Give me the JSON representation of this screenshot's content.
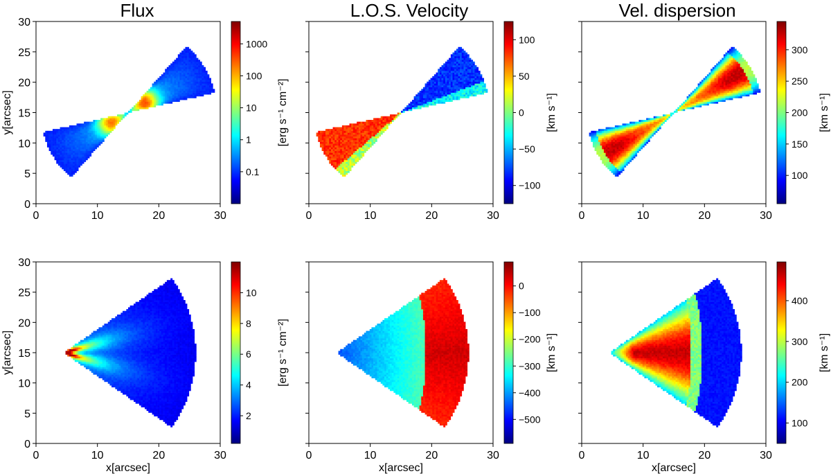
{
  "figure": {
    "column_titles": [
      "Flux",
      "L.O.S. Velocity",
      "Vel. dispersion"
    ]
  },
  "colormap": {
    "name": "jet",
    "stops": [
      "#00007f",
      "#0000ff",
      "#007fff",
      "#00ffff",
      "#7fff7f",
      "#ffff00",
      "#ff7f00",
      "#ff0000",
      "#7f0000"
    ]
  },
  "chart_data": [
    {
      "type": "heatmap",
      "row": 1,
      "col": 1,
      "title": "Flux",
      "xlim": [
        0,
        30
      ],
      "ylim": [
        0,
        30
      ],
      "xticks": [
        0,
        10,
        20,
        30
      ],
      "yticks": [
        0,
        5,
        10,
        15,
        20,
        25,
        30
      ],
      "xlabel": "",
      "ylabel": "y[arcsec]",
      "colorbar": {
        "label": "[erg s⁻¹ cm⁻²]",
        "scale": "log",
        "range": [
          0.01,
          5000
        ],
        "ticks": [
          0.1,
          1,
          10,
          100,
          1000
        ],
        "tick_labels": [
          "0.1",
          "1",
          "10",
          "100",
          "1000"
        ]
      },
      "description": "bicone"
    },
    {
      "type": "heatmap",
      "row": 1,
      "col": 2,
      "title": "L.O.S. Velocity",
      "xlim": [
        0,
        30
      ],
      "ylim": [
        0,
        30
      ],
      "xticks": [
        0,
        10,
        20,
        30
      ],
      "yticks": [],
      "xlabel": "",
      "ylabel": "",
      "colorbar": {
        "label": "[km s⁻¹]",
        "scale": "linear",
        "range": [
          -125,
          125
        ],
        "ticks": [
          -100,
          -50,
          0,
          50,
          100
        ],
        "tick_labels": [
          "−100",
          "−50",
          "0",
          "50",
          "100"
        ]
      },
      "description": "bicone"
    },
    {
      "type": "heatmap",
      "row": 1,
      "col": 3,
      "title": "Vel. dispersion",
      "xlim": [
        0,
        30
      ],
      "ylim": [
        0,
        30
      ],
      "xticks": [
        0,
        10,
        20,
        30
      ],
      "yticks": [],
      "xlabel": "",
      "ylabel": "",
      "colorbar": {
        "label": "[km s⁻¹]",
        "scale": "linear",
        "range": [
          55,
          345
        ],
        "ticks": [
          100,
          150,
          200,
          250,
          300
        ],
        "tick_labels": [
          "100",
          "150",
          "200",
          "250",
          "300"
        ]
      },
      "description": "bicone"
    },
    {
      "type": "heatmap",
      "row": 2,
      "col": 1,
      "title": "",
      "xlim": [
        0,
        30
      ],
      "ylim": [
        0,
        30
      ],
      "xticks": [
        0,
        10,
        20,
        30
      ],
      "yticks": [
        0,
        5,
        10,
        15,
        20,
        25,
        30
      ],
      "xlabel": "x[arcsec]",
      "ylabel": "y[arcsec]",
      "colorbar": {
        "label": "[erg s⁻¹ cm⁻²]",
        "scale": "linear",
        "range": [
          0.2,
          12
        ],
        "ticks": [
          2,
          4,
          6,
          8,
          10
        ],
        "tick_labels": [
          "2",
          "4",
          "6",
          "8",
          "10"
        ]
      },
      "description": "cone"
    },
    {
      "type": "heatmap",
      "row": 2,
      "col": 2,
      "title": "",
      "xlim": [
        0,
        30
      ],
      "ylim": [
        0,
        30
      ],
      "xticks": [
        0,
        10,
        20,
        30
      ],
      "yticks": [],
      "xlabel": "x[arcsec]",
      "ylabel": "",
      "colorbar": {
        "label": "[km s⁻¹]",
        "scale": "linear",
        "range": [
          -590,
          90
        ],
        "ticks": [
          -500,
          -400,
          -300,
          -200,
          -100,
          0
        ],
        "tick_labels": [
          "−500",
          "−400",
          "−300",
          "−200",
          "−100",
          "0"
        ]
      },
      "description": "cone"
    },
    {
      "type": "heatmap",
      "row": 2,
      "col": 3,
      "title": "",
      "xlim": [
        0,
        30
      ],
      "ylim": [
        0,
        30
      ],
      "xticks": [
        0,
        10,
        20,
        30
      ],
      "yticks": [],
      "xlabel": "x[arcsec]",
      "ylabel": "",
      "colorbar": {
        "label": "[km s⁻¹]",
        "scale": "linear",
        "range": [
          50,
          495
        ],
        "ticks": [
          100,
          200,
          300,
          400
        ],
        "tick_labels": [
          "100",
          "200",
          "300",
          "400"
        ]
      },
      "description": "cone"
    }
  ]
}
